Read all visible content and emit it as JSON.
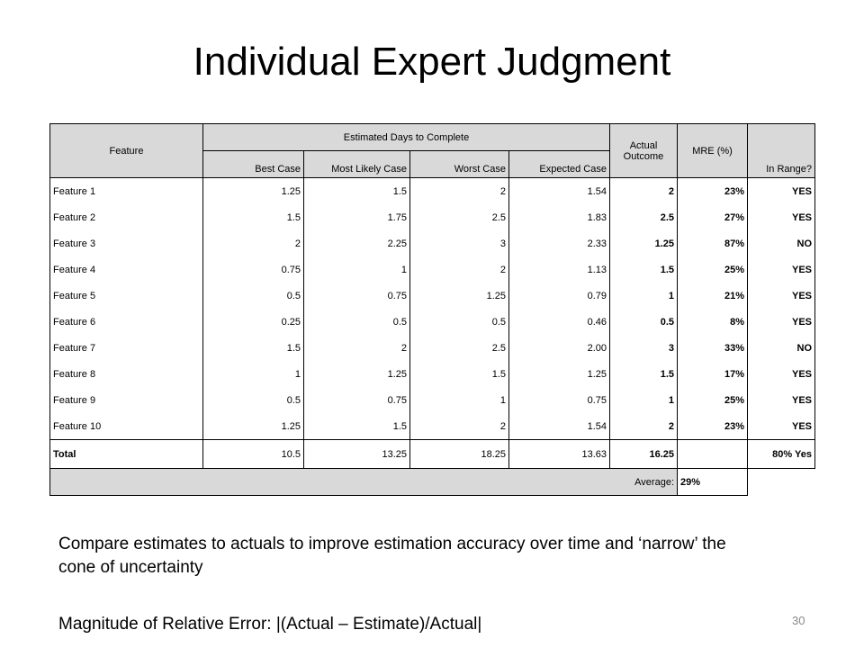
{
  "title": "Individual Expert Judgment",
  "table": {
    "header": {
      "feature": "Feature",
      "estimated": "Estimated Days to Complete",
      "actual": "Actual Outcome",
      "mre": "MRE (%)",
      "in_range": "In Range?",
      "sub": [
        "Best Case",
        "Most Likely Case",
        "Worst Case",
        "Expected Case"
      ]
    },
    "rows": [
      [
        "Feature 1",
        "1.25",
        "1.5",
        "2",
        "1.54",
        "2",
        "23%",
        "YES"
      ],
      [
        "Feature 2",
        "1.5",
        "1.75",
        "2.5",
        "1.83",
        "2.5",
        "27%",
        "YES"
      ],
      [
        "Feature 3",
        "2",
        "2.25",
        "3",
        "2.33",
        "1.25",
        "87%",
        "NO"
      ],
      [
        "Feature 4",
        "0.75",
        "1",
        "2",
        "1.13",
        "1.5",
        "25%",
        "YES"
      ],
      [
        "Feature 5",
        "0.5",
        "0.75",
        "1.25",
        "0.79",
        "1",
        "21%",
        "YES"
      ],
      [
        "Feature 6",
        "0.25",
        "0.5",
        "0.5",
        "0.46",
        "0.5",
        "8%",
        "YES"
      ],
      [
        "Feature 7",
        "1.5",
        "2",
        "2.5",
        "2.00",
        "3",
        "33%",
        "NO"
      ],
      [
        "Feature 8",
        "1",
        "1.25",
        "1.5",
        "1.25",
        "1.5",
        "17%",
        "YES"
      ],
      [
        "Feature 9",
        "0.5",
        "0.75",
        "1",
        "0.75",
        "1",
        "25%",
        "YES"
      ],
      [
        "Feature 10",
        "1.25",
        "1.5",
        "2",
        "1.54",
        "2",
        "23%",
        "YES"
      ]
    ],
    "total": {
      "label": "Total",
      "values": [
        "10.5",
        "13.25",
        "18.25",
        "13.63",
        "16.25"
      ],
      "in_range": "80% Yes"
    },
    "average": {
      "label": "Average:",
      "value": "29%"
    }
  },
  "notes": [
    "Compare estimates to actuals to improve estimation accuracy over time and ‘narrow’ the cone of uncertainty",
    "Magnitude of Relative Error: |(Actual – Estimate)/Actual|"
  ],
  "page_number": "30"
}
